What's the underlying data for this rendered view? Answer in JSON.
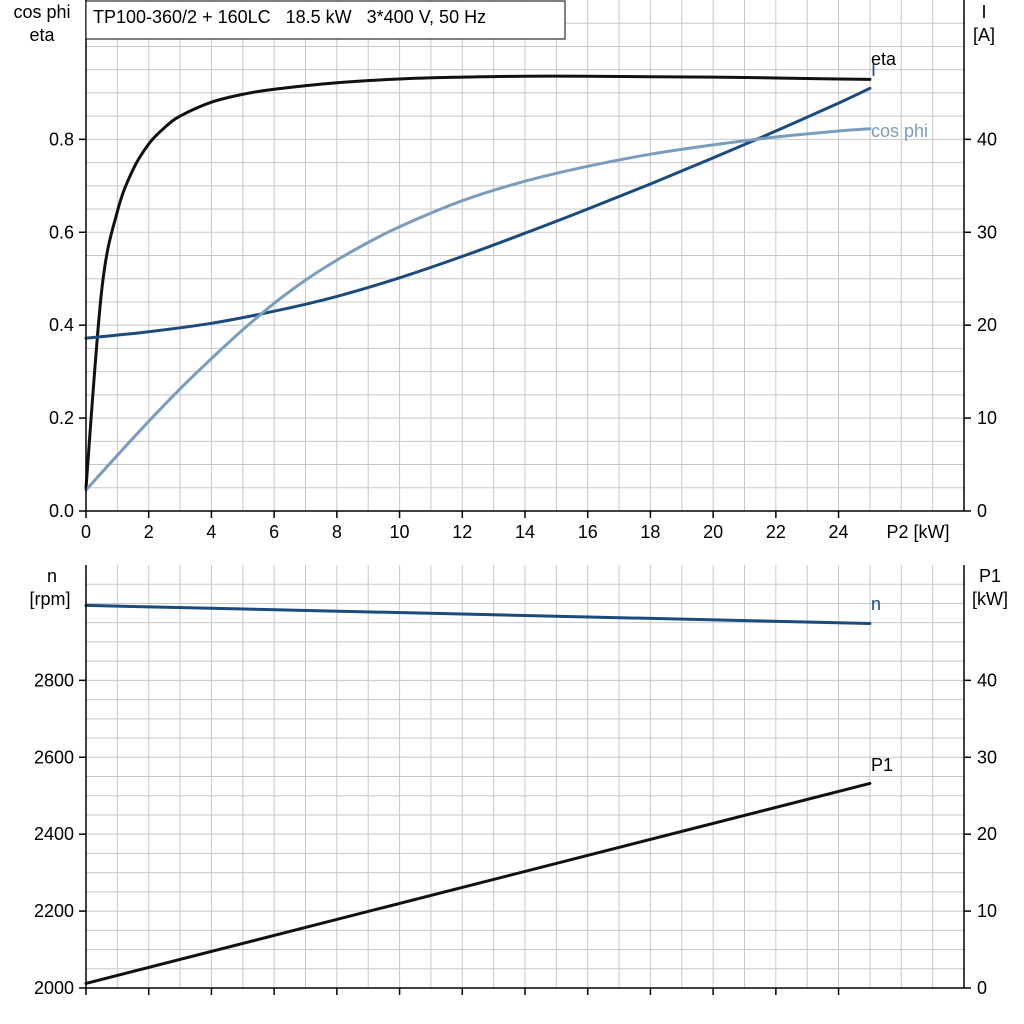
{
  "colors": {
    "eta": "#111111",
    "I": "#1b4a7d",
    "cos_phi": "#7b9dbd",
    "n": "#1b4a7d",
    "P1": "#111111",
    "grid": "#c8c8c8"
  },
  "chart_data": [
    {
      "type": "line",
      "title": "TP100-360/2 + 160LC   18.5 kW   3*400 V, 50 Hz",
      "xlabel": "P2 [kW]",
      "ylabel_left": [
        "cos phi",
        "eta"
      ],
      "ylabel_right": [
        "I",
        "[A]"
      ],
      "xlim": [
        0,
        28
      ],
      "ylim_left": [
        0,
        1.1
      ],
      "ylim_right": [
        0,
        55
      ],
      "x_ticks": [
        0,
        2,
        4,
        6,
        8,
        10,
        12,
        14,
        16,
        18,
        20,
        22,
        24
      ],
      "y_left_ticks": [
        "0.0",
        "0.2",
        "0.4",
        "0.6",
        "0.8"
      ],
      "y_right_ticks": [
        "0",
        "10",
        "20",
        "30",
        "40"
      ],
      "grid": true,
      "series": [
        {
          "name": "eta",
          "axis": "left",
          "x": [
            0,
            0.5,
            1,
            1.5,
            2,
            2.5,
            3,
            4,
            5,
            6,
            8,
            10,
            12,
            14,
            16,
            18,
            20,
            22,
            24,
            25
          ],
          "y": [
            0.05,
            0.475,
            0.645,
            0.735,
            0.79,
            0.825,
            0.85,
            0.88,
            0.897,
            0.908,
            0.922,
            0.93,
            0.934,
            0.936,
            0.936,
            0.935,
            0.934,
            0.932,
            0.93,
            0.929
          ]
        },
        {
          "name": "I",
          "axis": "right",
          "x": [
            0,
            2,
            4,
            6,
            8,
            10,
            12,
            14,
            16,
            18,
            20,
            22,
            24,
            25
          ],
          "y": [
            18.6,
            19.3,
            20.2,
            21.5,
            23.1,
            25.1,
            27.4,
            29.9,
            32.5,
            35.2,
            38.0,
            40.9,
            43.9,
            45.5
          ]
        },
        {
          "name": "cos phi",
          "axis": "left",
          "x": [
            0,
            1,
            2,
            3,
            4,
            5,
            6,
            7,
            8,
            9,
            10,
            12,
            14,
            16,
            18,
            20,
            22,
            24,
            25
          ],
          "y": [
            0.045,
            0.12,
            0.193,
            0.263,
            0.328,
            0.39,
            0.447,
            0.497,
            0.54,
            0.578,
            0.612,
            0.668,
            0.71,
            0.742,
            0.768,
            0.788,
            0.805,
            0.818,
            0.823
          ]
        }
      ]
    },
    {
      "type": "line",
      "xlim": [
        0,
        28
      ],
      "ylabel_left": [
        "n",
        "[rpm]"
      ],
      "ylabel_right": [
        "P1",
        "[kW]"
      ],
      "ylim_left": [
        2000,
        3100
      ],
      "ylim_right": [
        0,
        55
      ],
      "x_ticks": [
        0,
        2,
        4,
        6,
        8,
        10,
        12,
        14,
        16,
        18,
        20,
        22,
        24
      ],
      "y_left_ticks": [
        "2000",
        "2200",
        "2400",
        "2600",
        "2800"
      ],
      "y_right_ticks": [
        "0",
        "10",
        "20",
        "30",
        "40"
      ],
      "grid": true,
      "series": [
        {
          "name": "n",
          "axis": "left",
          "x": [
            0,
            25
          ],
          "y": [
            2995,
            2948
          ]
        },
        {
          "name": "P1",
          "axis": "right",
          "x": [
            0,
            25
          ],
          "y": [
            0.6,
            26.6
          ]
        }
      ]
    }
  ]
}
